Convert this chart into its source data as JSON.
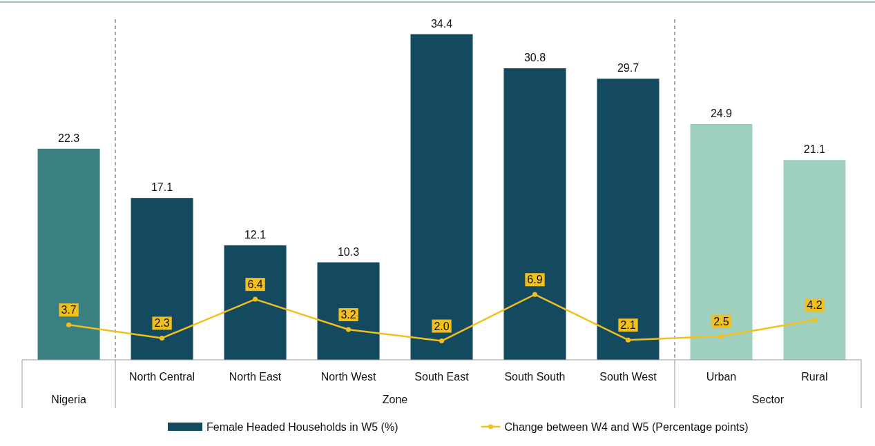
{
  "chart_data": {
    "type": "bar",
    "categories": [
      null,
      "North Central",
      "North East",
      "North West",
      "South East",
      "South South",
      "South West",
      "Urban",
      "Rural"
    ],
    "annotations": [
      "Nigeria",
      "Zone",
      "Sector"
    ],
    "series": [
      {
        "name": "Female Headed Households in W5 (%)",
        "color": "#134a60",
        "colors": [
          "#3a8080",
          "#134a60",
          "#134a60",
          "#134a60",
          "#134a60",
          "#134a60",
          "#134a60",
          "#9fd0bd",
          "#9fd0bd"
        ],
        "values": [
          22.3,
          17.1,
          12.1,
          10.3,
          34.4,
          30.8,
          29.7,
          24.9,
          21.1
        ],
        "value_labels": [
          "22.3",
          "17.1",
          "12.1",
          "10.3",
          "34.4",
          "30.8",
          "29.7",
          "24.9",
          "21.1"
        ]
      },
      {
        "name": "Change between W4 and W5 (Percentage points)",
        "type": "line",
        "color": "#f2c01e",
        "values": [
          3.7,
          2.3,
          6.4,
          3.2,
          2.0,
          6.9,
          2.1,
          2.5,
          4.2
        ],
        "value_labels": [
          "3.7",
          "2.3",
          "6.4",
          "3.2",
          "2.0",
          "6.9",
          "2.1",
          "2.5",
          "4.2"
        ]
      }
    ],
    "legend": "bottom",
    "marker": "circle"
  }
}
